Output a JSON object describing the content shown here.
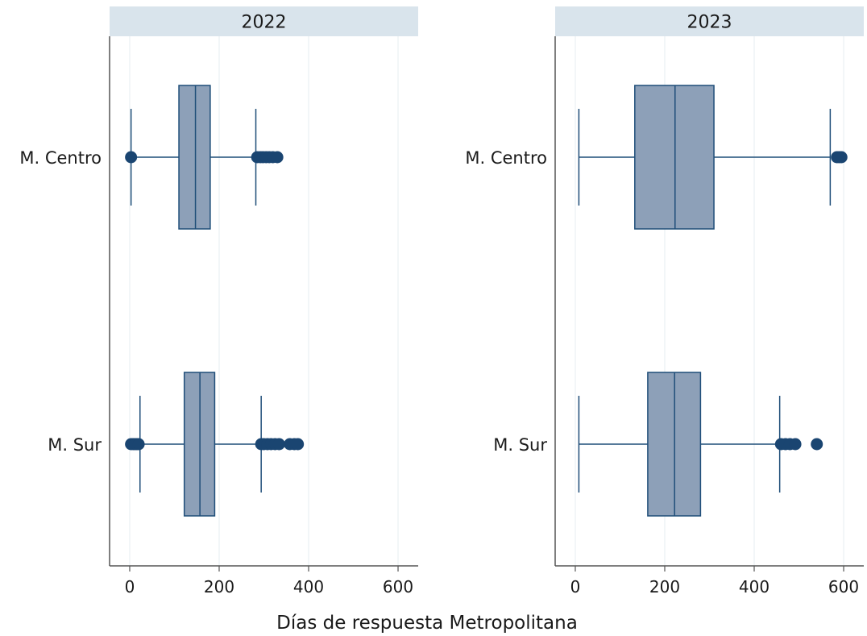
{
  "chart_data": {
    "type": "boxplot",
    "xlabel": "Días de respuesta Metropolitana",
    "xlim": [
      -45,
      645
    ],
    "xticks": [
      0,
      200,
      400,
      600
    ],
    "grid": true,
    "colors": {
      "box_fill": "#8da0b8",
      "line": "#1f4e79",
      "outlier": "#1a4571",
      "strip_bg": "#d9e4ec",
      "grid": "#e6edf1",
      "axis": "#555555"
    },
    "panels": [
      {
        "title": "2022",
        "groups": [
          {
            "category": "M. Centro",
            "whisker_low": 3,
            "q1": 110,
            "median": 147,
            "q3": 180,
            "whisker_high": 282,
            "outliers": [
              3,
              285,
              292,
              298,
              305,
              312,
              320,
              330
            ]
          },
          {
            "category": "M. Sur",
            "whisker_low": 23,
            "q1": 122,
            "median": 157,
            "q3": 190,
            "whisker_high": 294,
            "outliers": [
              3,
              8,
              12,
              16,
              20,
              294,
              300,
              308,
              316,
              325,
              334,
              358,
              368,
              376
            ]
          }
        ]
      },
      {
        "title": "2023",
        "groups": [
          {
            "category": "M. Centro",
            "whisker_low": 8,
            "q1": 133,
            "median": 223,
            "q3": 310,
            "whisker_high": 570,
            "outliers": [
              585,
              590,
              595
            ]
          },
          {
            "category": "M. Sur",
            "whisker_low": 8,
            "q1": 162,
            "median": 222,
            "q3": 280,
            "whisker_high": 457,
            "outliers": [
              460,
              470,
              480,
              492,
              540
            ]
          }
        ]
      }
    ]
  }
}
